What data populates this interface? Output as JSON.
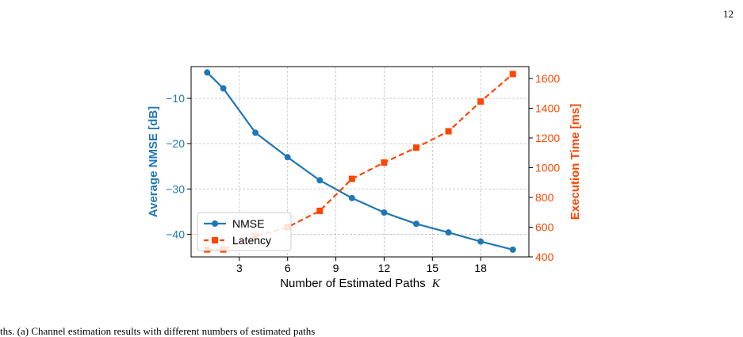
{
  "page": {
    "number": "12",
    "caption_fragment": "ths. (a) Channel estimation results with different numbers of estimated paths"
  },
  "colors": {
    "nmse": "#1f77b4",
    "latency": "#ff4500",
    "grid": "#c0c0c0"
  },
  "chart_data": {
    "type": "line",
    "xlabel": "Number of Estimated Paths",
    "xlabel_var": "K",
    "ylabel_left": "Average NMSE [dB]",
    "ylabel_right": "Execution Time [ms]",
    "xlim": [
      0,
      21
    ],
    "ylim_left": [
      -45,
      -3
    ],
    "ylim_right": [
      400,
      1680
    ],
    "x_ticks": [
      3,
      6,
      9,
      12,
      15,
      18
    ],
    "y_ticks_left": [
      -10,
      -20,
      -30,
      -40
    ],
    "y_ticks_right": [
      400,
      600,
      800,
      1000,
      1200,
      1400,
      1600
    ],
    "grid": true,
    "legend_position": "lower-left",
    "series": [
      {
        "name": "NMSE",
        "axis": "left",
        "style": "solid",
        "marker": "circle",
        "x": [
          1,
          2,
          4,
          6,
          8,
          10,
          12,
          14,
          16,
          18,
          20
        ],
        "values": [
          -4.3,
          -7.8,
          -17.6,
          -23.0,
          -28.1,
          -32.0,
          -35.2,
          -37.7,
          -39.6,
          -41.6,
          -43.4
        ]
      },
      {
        "name": "Latency",
        "axis": "right",
        "style": "dashed",
        "marker": "square",
        "x": [
          1,
          2,
          4,
          6,
          8,
          10,
          12,
          14,
          16,
          18,
          20
        ],
        "values": [
          450,
          450,
          540,
          600,
          710,
          925,
          1035,
          1135,
          1245,
          1445,
          1630
        ]
      }
    ]
  }
}
